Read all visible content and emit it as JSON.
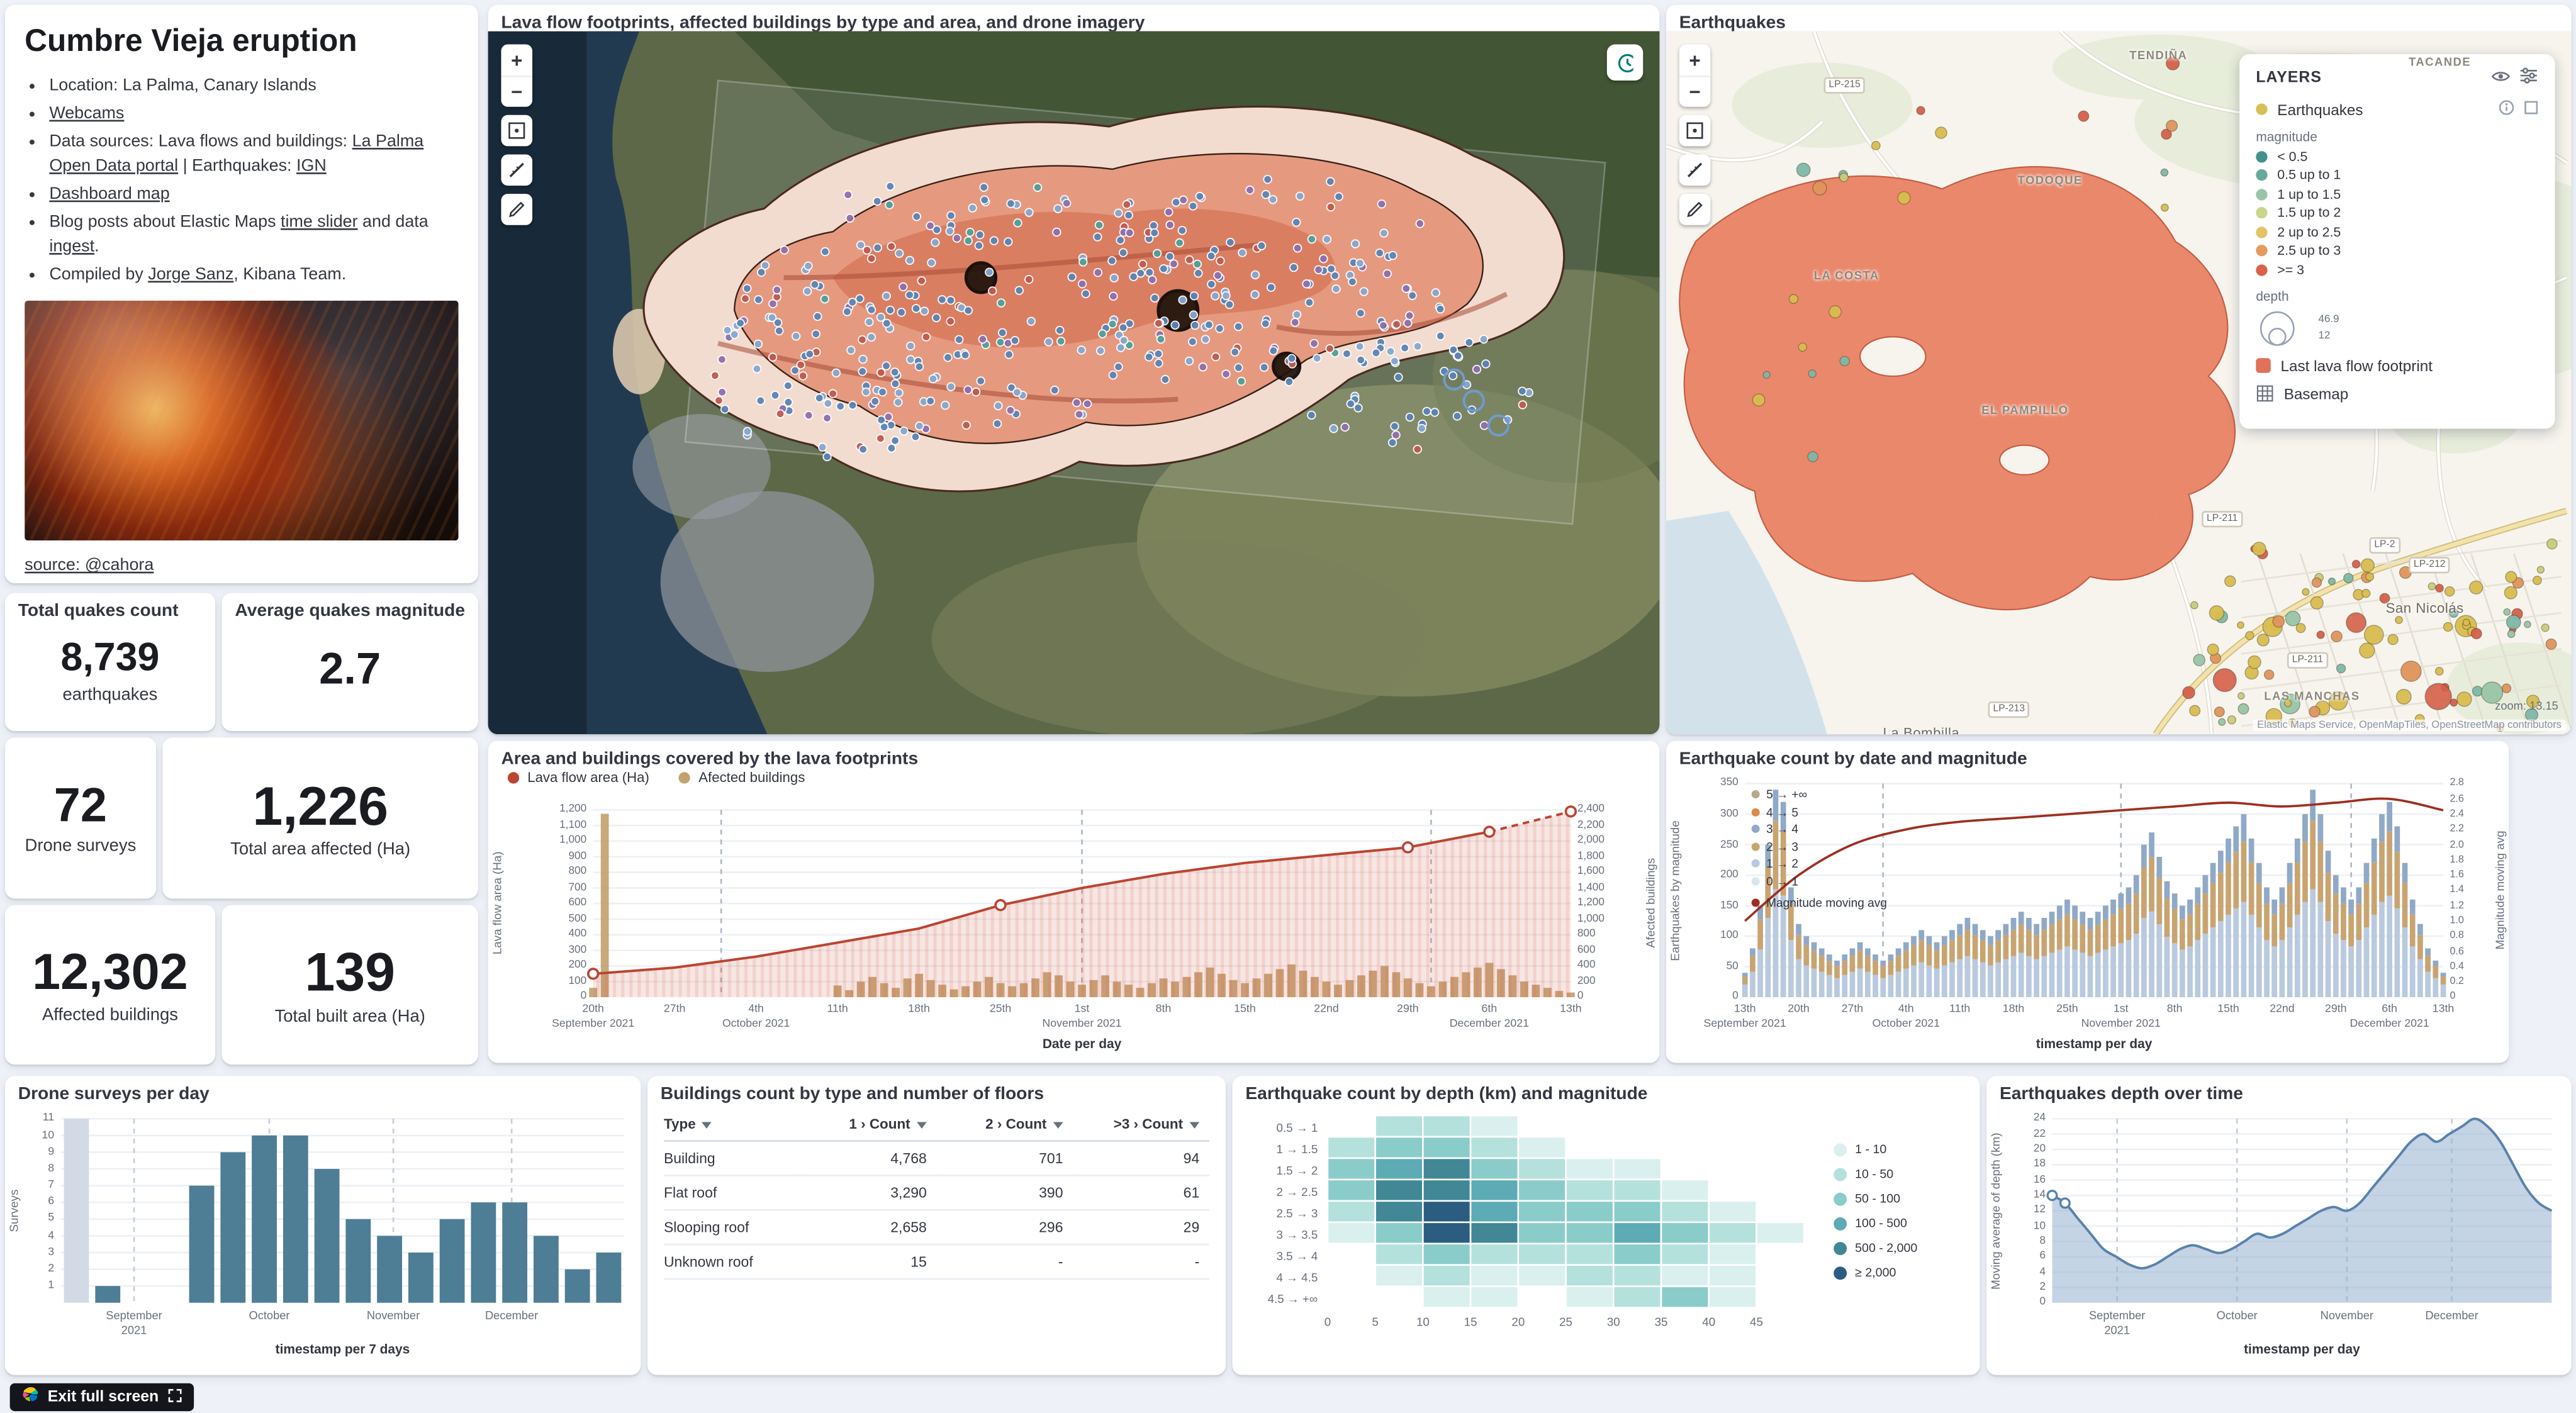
{
  "info": {
    "title": "Cumbre Vieja eruption",
    "bullets": [
      [
        {
          "t": "Location: La Palma, Canary Islands"
        }
      ],
      [
        {
          "t": "Webcams",
          "link": true
        }
      ],
      [
        {
          "t": "Data sources: Lava flows and buildings: "
        },
        {
          "t": "La Palma Open Data portal",
          "link": true
        },
        {
          "t": " | Earthquakes: "
        },
        {
          "t": "IGN",
          "link": true
        }
      ],
      [
        {
          "t": "Dashboard map",
          "link": true
        }
      ],
      [
        {
          "t": "Blog posts about Elastic Maps "
        },
        {
          "t": "time slider",
          "link": true
        },
        {
          "t": " and data "
        },
        {
          "t": "ingest",
          "link": true
        },
        {
          "t": "."
        }
      ],
      [
        {
          "t": "Compiled by "
        },
        {
          "t": "Jorge Sanz",
          "link": true
        },
        {
          "t": ", Kibana Team."
        }
      ]
    ],
    "photo_caption": "source: @cahora"
  },
  "metrics": [
    {
      "title": "Total quakes count",
      "value": "8,739",
      "label": "earthquakes"
    },
    {
      "title": "Average quakes magnitude",
      "value": "2.7",
      "label": ""
    },
    {
      "title": "",
      "value": "72",
      "label": "Drone surveys"
    },
    {
      "title": "",
      "value": "1,226",
      "label": "Total area affected (Ha)"
    },
    {
      "title": "",
      "value": "12,302",
      "label": "Affected buildings"
    },
    {
      "title": "",
      "value": "139",
      "label": "Total built area (Ha)"
    }
  ],
  "icons": {
    "zoom_in": "+",
    "zoom_out": "−"
  },
  "lava_map": {
    "title": "Lava flow footprints, affected buildings by type and area, and drone imagery"
  },
  "quake_map": {
    "title": "Earthquakes",
    "zoom_label": "zoom: 13.15",
    "attribution": "Elastic Maps Service, OpenMapTiles, OpenStreetMap contributors",
    "place_labels": [
      "TENDIÑA",
      "TACANDE",
      "TODOQUE",
      "EL PAMPILLO",
      "San Nicolás",
      "LAS MANCHAS",
      "La Bombilla",
      "LA COSTA"
    ],
    "road_badges": [
      "LP-215",
      "LP-211",
      "LP-2",
      "LP-212",
      "LP-211",
      "LP-213"
    ],
    "layers_panel": {
      "header": "LAYERS",
      "layer1_label": "Earthquakes",
      "layer1_color": "#d6bf57",
      "magnitude_title": "magnitude",
      "magnitude_classes": [
        {
          "label": "< 0.5",
          "color": "#41918b"
        },
        {
          "label": "0.5 up to 1",
          "color": "#67aa9a"
        },
        {
          "label": "1 up to 1.5",
          "color": "#98c5a7"
        },
        {
          "label": "1.5 up to 2",
          "color": "#c9d68b"
        },
        {
          "label": "2 up to 2.5",
          "color": "#e2c368"
        },
        {
          "label": "2.5 up to 3",
          "color": "#e39a5e"
        },
        {
          "label": ">= 3",
          "color": "#d9624b"
        }
      ],
      "depth_title": "depth",
      "depth_values": [
        "46.9",
        "12"
      ],
      "layer2_label": "Last lava flow footprint",
      "layer2_color": "#e0715a",
      "layer3_label": "Basemap"
    }
  },
  "chart_data": [
    {
      "id": "lava-area",
      "type": "area+bar",
      "title": "Area and buildings covered by the lava footprints",
      "legend": [
        {
          "label": "Lava flow area (Ha)",
          "color": "#bc4432"
        },
        {
          "label": "Afected buildings",
          "color": "#c3a26f"
        }
      ],
      "ylabel_left": "Lava flow area (Ha)",
      "ylabel_right": "Afected buildings",
      "xlabel": "Date per day",
      "ylim_left": [
        0,
        1200
      ],
      "ystep_left": 100,
      "ylim_right": [
        0,
        2400
      ],
      "ystep_right": 200,
      "days": 85,
      "x_ticks": [
        "20th|September 2021",
        "27th",
        "4th|October 2021",
        "11th",
        "18th",
        "25th",
        "1st|November 2021",
        "8th",
        "15th",
        "22nd",
        "29th",
        "6th|December 2021",
        "13th"
      ],
      "month_lines": [
        11,
        42,
        72
      ],
      "line_weekly": [
        150,
        190,
        260,
        350,
        440,
        590,
        700,
        790,
        860,
        910,
        960,
        1060,
        1190
      ],
      "line_markers": [
        0,
        5,
        10,
        11,
        12
      ],
      "bars_daily": [
        120,
        2350,
        0,
        0,
        0,
        0,
        0,
        0,
        0,
        0,
        0,
        0,
        0,
        0,
        0,
        0,
        0,
        0,
        0,
        0,
        0,
        150,
        90,
        200,
        260,
        180,
        120,
        240,
        300,
        220,
        160,
        100,
        140,
        200,
        260,
        180,
        140,
        180,
        240,
        320,
        280,
        200,
        160,
        220,
        280,
        200,
        160,
        120,
        180,
        240,
        200,
        260,
        320,
        380,
        300,
        220,
        180,
        240,
        300,
        360,
        420,
        340,
        260,
        200,
        160,
        220,
        280,
        340,
        400,
        320,
        240,
        180,
        140,
        200,
        260,
        320,
        380,
        440,
        360,
        280,
        200,
        160,
        120,
        80,
        60
      ]
    },
    {
      "id": "quake-count",
      "type": "stacked-bar+line",
      "title": "Earthquake count by date and magnitude",
      "ylabel_left": "Earthquakes by magnitude",
      "ylabel_right": "Magnitude moving avg",
      "xlabel": "timestamp per day",
      "ylim_left": [
        0,
        350
      ],
      "ystep_left": 50,
      "ylim_right": [
        0,
        2.8
      ],
      "ystep_right": 0.2,
      "days": 92,
      "x_ticks": [
        "13th|September 2021",
        "20th",
        "27th",
        "4th|October 2021",
        "11th",
        "18th",
        "25th",
        "1st|November 2021",
        "8th",
        "15th",
        "22nd",
        "29th",
        "6th|December 2021",
        "13th"
      ],
      "month_lines": [
        18,
        49,
        79
      ],
      "legend": [
        {
          "label": "5 → +∞",
          "color": "#b9a888"
        },
        {
          "label": "4 → 5",
          "color": "#da8b45"
        },
        {
          "label": "3 → 4",
          "color": "#8fa9c7"
        },
        {
          "label": "2 → 3",
          "color": "#c8a471"
        },
        {
          "label": "1 → 2",
          "color": "#b9c9de"
        },
        {
          "label": "0 → 1",
          "color": "#dde5ee"
        }
      ],
      "legend_line": {
        "label": "Magnitude moving avg",
        "color": "#9e2f20"
      },
      "stack_fractions": [
        {
          "f": 0.52,
          "color": "#b9c9de"
        },
        {
          "f": 0.33,
          "color": "#c8a471"
        },
        {
          "f": 0.15,
          "color": "#8fa9c7"
        }
      ],
      "totals_daily": [
        40,
        80,
        150,
        250,
        340,
        320,
        180,
        120,
        100,
        90,
        80,
        70,
        60,
        70,
        80,
        90,
        80,
        70,
        60,
        70,
        80,
        90,
        100,
        110,
        100,
        90,
        100,
        110,
        120,
        130,
        120,
        110,
        100,
        110,
        120,
        130,
        140,
        130,
        120,
        130,
        140,
        150,
        160,
        150,
        140,
        130,
        140,
        150,
        160,
        170,
        180,
        200,
        250,
        270,
        230,
        190,
        170,
        150,
        160,
        180,
        200,
        220,
        240,
        260,
        280,
        300,
        260,
        220,
        180,
        160,
        180,
        220,
        260,
        300,
        340,
        300,
        240,
        200,
        180,
        160,
        180,
        220,
        260,
        300,
        320,
        280,
        220,
        160,
        120,
        80,
        60,
        40
      ],
      "avg_weekly": [
        1.0,
        1.6,
        2.0,
        2.2,
        2.3,
        2.35,
        2.4,
        2.45,
        2.5,
        2.55,
        2.5,
        2.55,
        2.6,
        2.45
      ]
    },
    {
      "id": "drone-surveys",
      "type": "bar",
      "title": "Drone surveys per day",
      "ylabel": "Surveys",
      "xlabel": "timestamp per 7 days",
      "ylim": [
        0,
        11
      ],
      "ystep": 1,
      "values": [
        11,
        1,
        0,
        0,
        7,
        9,
        10,
        10,
        8,
        5,
        4,
        3,
        5,
        6,
        6,
        4,
        2,
        3
      ],
      "first_bar_color": "#d3dae6",
      "bar_color": "#4e7d96",
      "x_ticks": [
        {
          "label": "September|2021",
          "f": 0.13
        },
        {
          "label": "October",
          "f": 0.37
        },
        {
          "label": "November",
          "f": 0.59
        },
        {
          "label": "December",
          "f": 0.8
        }
      ],
      "month_line_fs": [
        0.13,
        0.37,
        0.59,
        0.8
      ]
    },
    {
      "id": "depth-heatmap",
      "type": "heatmap",
      "title": "Earthquake count by depth (km) and magnitude",
      "rows": [
        "0.5 → 1",
        "1 → 1.5",
        "1.5 → 2",
        "2 → 2.5",
        "2.5 → 3",
        "3 → 3.5",
        "3.5 → 4",
        "4 → 4.5",
        "4.5 → +∞"
      ],
      "x_ticks": [
        "0",
        "5",
        "10",
        "15",
        "20",
        "25",
        "30",
        "35",
        "40",
        "45"
      ],
      "palette": [
        "#daf0ee",
        "#b5e1dd",
        "#8accc9",
        "#5dabb4",
        "#418795",
        "#2a5d80"
      ],
      "legend": [
        "1 - 10",
        "10 - 50",
        "50 - 100",
        "100 - 500",
        "500 - 2,000",
        "≥ 2,000"
      ],
      "matrix": [
        [
          0,
          2,
          2,
          1,
          0,
          0,
          0,
          0,
          0,
          0
        ],
        [
          2,
          3,
          3,
          2,
          1,
          0,
          0,
          0,
          0,
          0
        ],
        [
          3,
          4,
          5,
          3,
          2,
          1,
          1,
          0,
          0,
          0
        ],
        [
          3,
          5,
          5,
          4,
          3,
          2,
          2,
          1,
          0,
          0
        ],
        [
          2,
          5,
          6,
          4,
          3,
          3,
          3,
          2,
          1,
          0
        ],
        [
          1,
          3,
          6,
          5,
          3,
          3,
          4,
          3,
          2,
          1
        ],
        [
          0,
          2,
          3,
          2,
          2,
          2,
          3,
          2,
          1,
          0
        ],
        [
          0,
          1,
          2,
          1,
          1,
          2,
          2,
          1,
          1,
          0
        ],
        [
          0,
          0,
          1,
          1,
          0,
          1,
          2,
          3,
          1,
          0
        ]
      ]
    },
    {
      "id": "depth-over-time",
      "type": "area",
      "title": "Earthquakes depth over time",
      "ylabel": "Moving average of depth (km)",
      "xlabel": "timestamp per day",
      "ylim": [
        0,
        24
      ],
      "ystep": 2,
      "values": [
        14,
        13,
        11,
        9,
        7,
        6,
        5,
        4.5,
        5,
        6,
        7,
        7.5,
        7,
        6.5,
        7,
        8,
        9,
        8.5,
        9,
        10,
        11,
        12,
        12.5,
        12,
        13,
        15,
        17,
        19,
        21,
        22,
        21,
        22,
        23,
        24,
        23,
        21,
        18,
        15,
        13,
        12
      ],
      "markers": [
        0,
        1
      ],
      "line_color": "#5a82ab",
      "fill_color": "rgba(147,176,207,0.55)",
      "x_ticks": [
        {
          "label": "September|2021",
          "f": 0.13
        },
        {
          "label": "October",
          "f": 0.37
        },
        {
          "label": "November",
          "f": 0.59
        },
        {
          "label": "December",
          "f": 0.8
        }
      ],
      "month_line_fs": [
        0.13,
        0.37,
        0.59,
        0.8
      ]
    }
  ],
  "buildings_table": {
    "title": "Buildings count by type and number of floors",
    "columns": [
      "Type",
      "1 › Count",
      "2 › Count",
      ">3 › Count"
    ],
    "rows": [
      [
        "Building",
        "4,768",
        "701",
        "94"
      ],
      [
        "Flat roof",
        "3,290",
        "390",
        "61"
      ],
      [
        "Slooping roof",
        "2,658",
        "296",
        "29"
      ],
      [
        "Unknown roof",
        "15",
        "-",
        "-"
      ]
    ]
  },
  "exit_button_label": "Exit full screen"
}
